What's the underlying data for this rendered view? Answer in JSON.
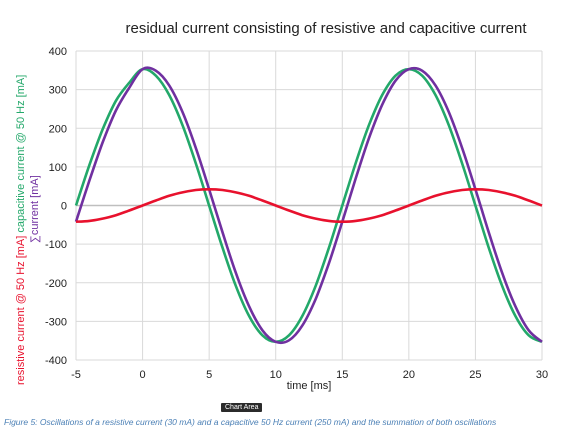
{
  "chart_data": {
    "type": "line",
    "title": "residual current consisting of resistive and capacitive current",
    "xlabel": "time [ms]",
    "ylabel_parts": [
      {
        "text": "resistive current @ 50 Hz [mA]",
        "color": "#e8112d"
      },
      {
        "text": "capacitive current @ 50 Hz [mA]",
        "color": "#23a86a"
      },
      {
        "text": "∑current [mA]",
        "color": "#7030a0"
      }
    ],
    "xlim": [
      -5,
      30
    ],
    "ylim": [
      -400,
      400
    ],
    "xticks": [
      -5,
      0,
      5,
      10,
      15,
      20,
      25,
      30
    ],
    "yticks": [
      -400,
      -300,
      -200,
      -100,
      0,
      100,
      200,
      300,
      400
    ],
    "grid": true,
    "legend": "none",
    "series": [
      {
        "color": "#e8112d",
        "x": [
          -5,
          -4,
          -3,
          -2,
          -1,
          0,
          1,
          2,
          3,
          4,
          5,
          6,
          7,
          8,
          9,
          10,
          11,
          12,
          13,
          14,
          15,
          16,
          17,
          18,
          19,
          20,
          21,
          22,
          23,
          24,
          25,
          26,
          27,
          28,
          29,
          30
        ],
        "y": [
          -42,
          -40,
          -34,
          -25,
          -13,
          0,
          13,
          25,
          34,
          40,
          42,
          40,
          34,
          25,
          13,
          0,
          -13,
          -25,
          -34,
          -40,
          -42,
          -40,
          -34,
          -25,
          -13,
          0,
          13,
          25,
          34,
          40,
          42,
          40,
          34,
          25,
          13,
          0
        ]
      },
      {
        "color": "#23a86a",
        "x": [
          -5,
          -4,
          -3,
          -2,
          -1,
          0,
          1,
          2,
          3,
          4,
          5,
          6,
          7,
          8,
          9,
          10,
          11,
          12,
          13,
          14,
          15,
          16,
          17,
          18,
          19,
          20,
          21,
          22,
          23,
          24,
          25,
          26,
          27,
          28,
          29,
          30
        ],
        "y": [
          0,
          104,
          197,
          271,
          318,
          353,
          336,
          286,
          208,
          109,
          0,
          -109,
          -208,
          -286,
          -336,
          -353,
          -336,
          -286,
          -208,
          -109,
          0,
          109,
          208,
          286,
          336,
          353,
          336,
          286,
          208,
          109,
          0,
          -109,
          -208,
          -286,
          -336,
          -353
        ]
      },
      {
        "color": "#7030a0",
        "x": [
          -5,
          -4,
          -3,
          -2,
          -1,
          0,
          1,
          2,
          3,
          4,
          5,
          6,
          7,
          8,
          9,
          10,
          11,
          12,
          13,
          14,
          15,
          16,
          17,
          18,
          19,
          20,
          21,
          22,
          23,
          24,
          25,
          26,
          27,
          28,
          29,
          30
        ],
        "y": [
          -42,
          64,
          163,
          246,
          305,
          353,
          349,
          311,
          242,
          149,
          42,
          -69,
          -174,
          -261,
          -323,
          -353,
          -349,
          -311,
          -242,
          -149,
          -42,
          69,
          174,
          261,
          323,
          353,
          349,
          311,
          242,
          149,
          42,
          -69,
          -174,
          -261,
          -323,
          -353
        ]
      }
    ]
  },
  "tooltip": "Chart Area",
  "caption": "Figure 5: Oscillations of a resistive current (30 mA) and a capacitive 50 Hz current (250 mA) and the summation of both oscillations"
}
